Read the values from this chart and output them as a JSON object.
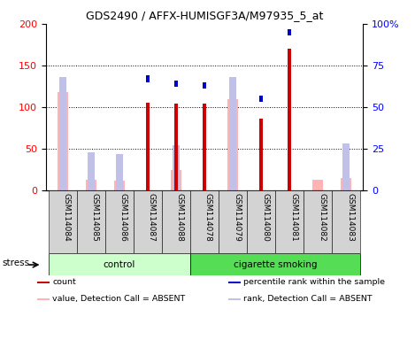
{
  "title": "GDS2490 / AFFX-HUMISGF3A/M97935_5_at",
  "samples": [
    "GSM114084",
    "GSM114085",
    "GSM114086",
    "GSM114087",
    "GSM114088",
    "GSM114078",
    "GSM114079",
    "GSM114080",
    "GSM114081",
    "GSM114082",
    "GSM114083"
  ],
  "count_present": [
    null,
    null,
    null,
    105,
    104,
    104,
    null,
    86,
    170,
    null,
    null
  ],
  "rank_present": [
    null,
    null,
    null,
    67,
    64,
    63,
    null,
    55,
    95,
    null,
    null
  ],
  "value_absent": [
    118,
    13,
    12,
    null,
    25,
    null,
    110,
    null,
    null,
    13,
    15
  ],
  "rank_absent": [
    68,
    23,
    22,
    null,
    27,
    null,
    68,
    null,
    null,
    null,
    28
  ],
  "ylim_left": [
    0,
    200
  ],
  "ylim_right": [
    0,
    100
  ],
  "left_ticks": [
    0,
    50,
    100,
    150,
    200
  ],
  "right_ticks": [
    0,
    25,
    50,
    75,
    100
  ],
  "right_tick_labels": [
    "0",
    "25",
    "50",
    "75",
    "100%"
  ],
  "color_count": "#cc0000",
  "color_rank": "#0000cc",
  "color_value_absent": "#ffb3b3",
  "color_rank_absent": "#c0c0e8",
  "group_bg_control": "#ccffcc",
  "group_bg_smoking": "#55dd55",
  "n_control": 5,
  "n_smoking": 6,
  "legend": [
    {
      "label": "count",
      "color": "#cc0000"
    },
    {
      "label": "percentile rank within the sample",
      "color": "#0000cc"
    },
    {
      "label": "value, Detection Call = ABSENT",
      "color": "#ffb3b3"
    },
    {
      "label": "rank, Detection Call = ABSENT",
      "color": "#c0c0e8"
    }
  ]
}
